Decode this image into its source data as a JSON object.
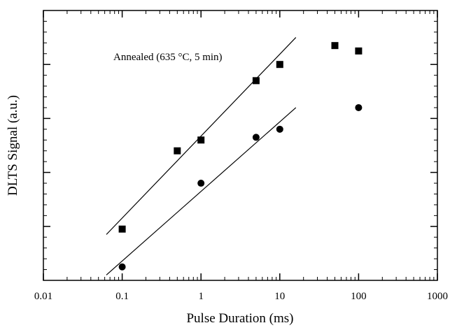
{
  "chart_data": {
    "type": "scatter",
    "title": "",
    "xlabel": "Pulse Duration (ms)",
    "ylabel": "DLTS Signal (a.u.)",
    "x_scale": "log",
    "xlim": [
      0.01,
      1000
    ],
    "x_ticks": [
      0.01,
      0.1,
      1,
      10,
      100,
      1000
    ],
    "x_tick_labels": [
      "0.01",
      "0.1",
      "1",
      "10",
      "100",
      "1000"
    ],
    "ylim": [
      0,
      1
    ],
    "y_tick_labels_shown": false,
    "grid": false,
    "legend": "none",
    "annotation": "Annealed (635 °C, 5 min)",
    "series": [
      {
        "marker": "square",
        "points": [
          {
            "x": 0.1,
            "y": 0.19
          },
          {
            "x": 0.5,
            "y": 0.48
          },
          {
            "x": 1,
            "y": 0.52
          },
          {
            "x": 5,
            "y": 0.74
          },
          {
            "x": 10,
            "y": 0.8
          },
          {
            "x": 50,
            "y": 0.87
          },
          {
            "x": 100,
            "y": 0.85
          }
        ],
        "fit_line": {
          "x": [
            0.063,
            16
          ],
          "y": [
            0.17,
            0.9
          ]
        }
      },
      {
        "marker": "circle",
        "points": [
          {
            "x": 0.1,
            "y": 0.05
          },
          {
            "x": 1,
            "y": 0.36
          },
          {
            "x": 5,
            "y": 0.53
          },
          {
            "x": 10,
            "y": 0.56
          },
          {
            "x": 100,
            "y": 0.64
          }
        ],
        "fit_line": {
          "x": [
            0.063,
            16
          ],
          "y": [
            0.02,
            0.64
          ]
        }
      }
    ]
  }
}
